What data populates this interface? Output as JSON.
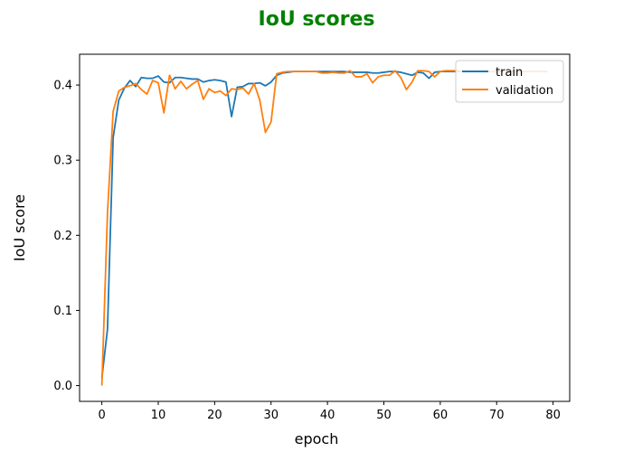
{
  "chart_data": {
    "type": "line",
    "title": "IoU scores",
    "title_color": "#008000",
    "xlabel": "epoch",
    "ylabel": "IoU score",
    "xlim": [
      -3.95,
      82.95
    ],
    "ylim": [
      -0.021,
      0.441
    ],
    "xticks": [
      0,
      10,
      20,
      30,
      40,
      50,
      60,
      70,
      80
    ],
    "xtick_labels": [
      "0",
      "10",
      "20",
      "30",
      "40",
      "50",
      "60",
      "70",
      "80"
    ],
    "yticks": [
      0.0,
      0.1,
      0.2,
      0.3,
      0.4
    ],
    "ytick_labels": [
      "0.0",
      "0.1",
      "0.2",
      "0.3",
      "0.4"
    ],
    "grid": false,
    "legend_position": "top-right",
    "series": [
      {
        "name": "train",
        "color": "#1f77b4",
        "x": [
          0,
          1,
          2,
          3,
          4,
          5,
          6,
          7,
          8,
          9,
          10,
          11,
          12,
          13,
          14,
          15,
          16,
          17,
          18,
          19,
          20,
          21,
          22,
          23,
          24,
          25,
          26,
          27,
          28,
          29,
          30,
          31,
          32,
          33,
          34,
          35,
          36,
          37,
          38,
          39,
          40,
          41,
          42,
          43,
          44,
          45,
          46,
          47,
          48,
          49,
          50,
          51,
          52,
          53,
          54,
          55,
          56,
          57,
          58,
          59,
          60,
          61,
          62,
          63,
          64,
          65,
          66,
          67,
          68,
          69,
          70,
          71,
          72,
          73,
          74,
          75,
          76,
          77,
          78,
          79
        ],
        "y": [
          0.01,
          0.075,
          0.33,
          0.38,
          0.396,
          0.406,
          0.398,
          0.41,
          0.409,
          0.409,
          0.412,
          0.404,
          0.403,
          0.41,
          0.41,
          0.409,
          0.408,
          0.408,
          0.404,
          0.406,
          0.407,
          0.406,
          0.404,
          0.358,
          0.397,
          0.398,
          0.402,
          0.402,
          0.403,
          0.399,
          0.404,
          0.413,
          0.416,
          0.417,
          0.418,
          0.418,
          0.418,
          0.418,
          0.418,
          0.418,
          0.418,
          0.418,
          0.418,
          0.418,
          0.417,
          0.417,
          0.417,
          0.417,
          0.416,
          0.416,
          0.417,
          0.418,
          0.418,
          0.417,
          0.415,
          0.413,
          0.417,
          0.416,
          0.409,
          0.417,
          0.418,
          0.418,
          0.418,
          0.418,
          0.418,
          0.418,
          0.418,
          0.418,
          0.418,
          0.418,
          0.418,
          0.418,
          0.418,
          0.418,
          0.418,
          0.418,
          0.418,
          0.418,
          0.418,
          0.418
        ]
      },
      {
        "name": "validation",
        "color": "#ff7f0e",
        "x": [
          0,
          1,
          2,
          3,
          4,
          5,
          6,
          7,
          8,
          9,
          10,
          11,
          12,
          13,
          14,
          15,
          16,
          17,
          18,
          19,
          20,
          21,
          22,
          23,
          24,
          25,
          26,
          27,
          28,
          29,
          30,
          31,
          32,
          33,
          34,
          35,
          36,
          37,
          38,
          39,
          40,
          41,
          42,
          43,
          44,
          45,
          46,
          47,
          48,
          49,
          50,
          51,
          52,
          53,
          54,
          55,
          56,
          57,
          58,
          59,
          60,
          61,
          62,
          63,
          64,
          65,
          66,
          67,
          68,
          69,
          70,
          71,
          72,
          73,
          74,
          75,
          76,
          77,
          78,
          79
        ],
        "y": [
          0.0,
          0.23,
          0.365,
          0.392,
          0.397,
          0.399,
          0.402,
          0.394,
          0.388,
          0.406,
          0.403,
          0.363,
          0.413,
          0.395,
          0.405,
          0.395,
          0.401,
          0.406,
          0.381,
          0.395,
          0.39,
          0.392,
          0.386,
          0.395,
          0.394,
          0.396,
          0.388,
          0.402,
          0.38,
          0.337,
          0.351,
          0.415,
          0.417,
          0.418,
          0.418,
          0.418,
          0.418,
          0.418,
          0.418,
          0.416,
          0.416,
          0.417,
          0.416,
          0.416,
          0.419,
          0.411,
          0.411,
          0.415,
          0.403,
          0.411,
          0.413,
          0.413,
          0.419,
          0.41,
          0.394,
          0.404,
          0.419,
          0.419,
          0.418,
          0.411,
          0.418,
          0.419,
          0.419,
          0.419,
          0.418,
          0.418,
          0.418,
          0.418,
          0.418,
          0.418,
          0.418,
          0.418,
          0.418,
          0.418,
          0.418,
          0.418,
          0.418,
          0.418,
          0.418,
          0.418
        ]
      }
    ]
  }
}
